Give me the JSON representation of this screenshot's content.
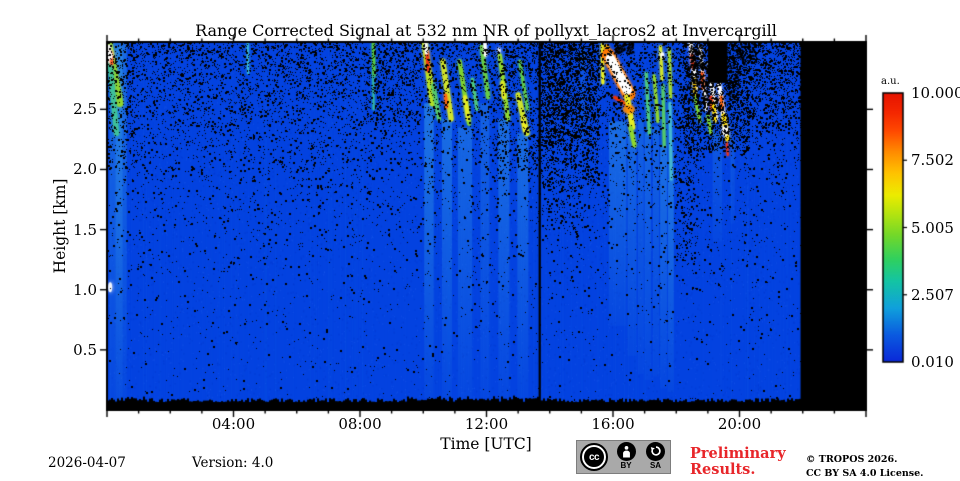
{
  "footer": {
    "date": "2026-04-07",
    "version": "Version: 4.0",
    "preliminary_line1": "Preliminary",
    "preliminary_line2": "Results.",
    "copyright_line1": "© TROPOS 2026.",
    "copyright_line2": "CC BY SA 4.0 License.",
    "badge": {
      "cc": "cc",
      "by": "BY",
      "sa": "SA"
    }
  },
  "chart_data": {
    "type": "heatmap",
    "title": "Range Corrected Signal at 532 nm NR of pollyxt_lacros2 at Invercargill",
    "xlabel": "Time [UTC]",
    "ylabel": "Height [km]",
    "x_range_hours": [
      0,
      24
    ],
    "x_minor_step_hours": 1,
    "x_major_tick_hours": [
      4,
      8,
      12,
      16,
      20
    ],
    "x_tick_labels": [
      "04:00",
      "08:00",
      "12:00",
      "16:00",
      "20:00"
    ],
    "y_range_km": [
      0,
      3.06
    ],
    "y_tick_km": [
      0.5,
      1.0,
      1.5,
      2.0,
      2.5
    ],
    "y_tick_labels": [
      "0.5",
      "1.0",
      "1.5",
      "2.0",
      "2.5"
    ],
    "colorbar": {
      "unit": "a.u.",
      "range": [
        0.01,
        10.0
      ],
      "tick_values": [
        10.0,
        7.502,
        5.005,
        2.507,
        0.01
      ],
      "tick_labels": [
        "10.000",
        "7.502",
        "5.005",
        "2.507",
        "0.010"
      ],
      "gradient_bottom_to_top": [
        [
          0.0,
          "#0a28d8"
        ],
        [
          0.1,
          "#0a5ae0"
        ],
        [
          0.2,
          "#10a0dc"
        ],
        [
          0.3,
          "#14c4a4"
        ],
        [
          0.38,
          "#2fd060"
        ],
        [
          0.47,
          "#72d82a"
        ],
        [
          0.55,
          "#b4e410"
        ],
        [
          0.62,
          "#ecec00"
        ],
        [
          0.7,
          "#ffc400"
        ],
        [
          0.78,
          "#ff8c00"
        ],
        [
          0.86,
          "#ff4800"
        ],
        [
          0.93,
          "#f42600"
        ],
        [
          1.0,
          "#e61400"
        ]
      ]
    },
    "background_color": "#0342e0",
    "no_data_color": "#000000",
    "data_start_hour": 0,
    "data_end_hour": 21.93,
    "gap_hour": 13.68,
    "ground_black_strip_top_km": 0.09,
    "trail_color": "#3aa8e8",
    "trails": [
      [
        0.35,
        0.55,
        3.06,
        0.02,
        0.4
      ],
      [
        0.38,
        0.22,
        3.02,
        0.02,
        0.4
      ],
      [
        10.18,
        0.3,
        2.55,
        0.1,
        0.5
      ],
      [
        10.75,
        0.32,
        2.42,
        0.1,
        0.42
      ],
      [
        11.32,
        0.45,
        2.35,
        0.1,
        0.36
      ],
      [
        11.95,
        0.28,
        2.55,
        0.1,
        0.3
      ],
      [
        12.55,
        0.35,
        2.42,
        0.1,
        0.42
      ],
      [
        13.15,
        0.35,
        2.3,
        0.1,
        0.4
      ],
      [
        15.05,
        0.15,
        3.0,
        2.2,
        0.18
      ],
      [
        16.15,
        0.55,
        2.4,
        0.7,
        0.42
      ],
      [
        16.6,
        0.28,
        2.3,
        0.45,
        0.35
      ],
      [
        16.88,
        0.18,
        2.42,
        0.3,
        0.3
      ],
      [
        17.1,
        0.2,
        2.3,
        0.25,
        0.35
      ],
      [
        17.36,
        0.2,
        2.36,
        0.28,
        0.3
      ],
      [
        17.6,
        0.22,
        2.2,
        0.18,
        0.45
      ],
      [
        17.83,
        0.18,
        1.92,
        0.15,
        0.48
      ],
      [
        19.3,
        0.3,
        2.3,
        1.4,
        0.22
      ],
      [
        19.78,
        0.14,
        2.25,
        1.55,
        0.2
      ]
    ],
    "cores": [
      [
        0.06,
        3.04,
        0.4,
        2.55,
        "#8fd42e",
        7
      ],
      [
        0.1,
        2.88,
        0.3,
        2.3,
        "#3ec09a",
        5
      ],
      [
        0.06,
        3.02,
        0.1,
        2.9,
        "#ffffff",
        4
      ],
      [
        0.13,
        2.97,
        0.15,
        2.88,
        "#ff5522",
        3
      ],
      [
        4.45,
        3.05,
        4.46,
        2.8,
        "#38b8d8",
        2
      ],
      [
        8.42,
        3.05,
        8.44,
        2.78,
        "#55cc44",
        3
      ],
      [
        8.42,
        2.78,
        8.43,
        2.5,
        "#33b8a0",
        2
      ],
      [
        10.05,
        3.04,
        10.3,
        2.55,
        "#b8e022",
        6
      ],
      [
        10.12,
        2.98,
        10.16,
        2.82,
        "#ee3311",
        3
      ],
      [
        10.08,
        3.05,
        10.1,
        2.97,
        "#ffffff",
        3
      ],
      [
        10.32,
        2.7,
        10.5,
        2.42,
        "#55c86a",
        4
      ],
      [
        10.62,
        2.9,
        10.88,
        2.42,
        "#cfe32a",
        5
      ],
      [
        10.7,
        2.62,
        10.74,
        2.52,
        "#ff6611",
        3
      ],
      [
        11.15,
        2.9,
        11.45,
        2.38,
        "#7fd42e",
        4
      ],
      [
        11.32,
        2.6,
        11.42,
        2.42,
        "#e3ea22",
        4
      ],
      [
        11.55,
        2.75,
        11.7,
        2.5,
        "#4ec87e",
        3
      ],
      [
        11.85,
        3.02,
        12.05,
        2.6,
        "#66cc44",
        4
      ],
      [
        11.95,
        3.05,
        11.97,
        2.95,
        "#ffffff",
        3
      ],
      [
        12.42,
        2.95,
        12.68,
        2.42,
        "#8fd82e",
        4
      ],
      [
        12.5,
        2.72,
        12.55,
        2.6,
        "#dfe822",
        4
      ],
      [
        13.0,
        2.62,
        13.28,
        2.3,
        "#cfe32a",
        5
      ],
      [
        13.05,
        2.9,
        13.3,
        2.5,
        "#5fcb4a",
        3
      ],
      [
        13.15,
        2.42,
        13.22,
        2.32,
        "#eeee22",
        4
      ],
      [
        15.66,
        3.04,
        15.68,
        2.72,
        "#e8ee22",
        3
      ],
      [
        15.8,
        3.02,
        15.92,
        2.9,
        "#ffaa00",
        5
      ],
      [
        15.85,
        2.95,
        15.88,
        2.88,
        "#ee3311",
        3
      ],
      [
        15.85,
        2.95,
        16.5,
        2.63,
        "#ff7700",
        13
      ],
      [
        15.92,
        2.92,
        16.45,
        2.66,
        "#ffffff",
        9
      ],
      [
        16.05,
        2.6,
        16.55,
        2.52,
        "#ee3300",
        3
      ],
      [
        16.45,
        2.6,
        16.62,
        2.35,
        "#e8ee22",
        5
      ],
      [
        16.55,
        2.35,
        16.68,
        2.2,
        "#8fd82e",
        4
      ],
      [
        17.05,
        2.8,
        17.15,
        2.3,
        "#4ec87e",
        3
      ],
      [
        17.3,
        2.78,
        17.42,
        2.4,
        "#8fd42e",
        3
      ],
      [
        17.5,
        3.02,
        17.55,
        2.75,
        "#cfe32a",
        3
      ],
      [
        17.58,
        2.7,
        17.62,
        2.2,
        "#55c86a",
        3
      ],
      [
        17.78,
        3.0,
        17.82,
        2.6,
        "#9fd82e",
        3
      ],
      [
        17.8,
        2.55,
        17.84,
        1.92,
        "#44b8d0",
        3
      ],
      [
        18.45,
        3.05,
        18.62,
        2.68,
        "#ffffff",
        4
      ],
      [
        18.5,
        2.95,
        18.53,
        2.85,
        "#ee3311",
        3
      ],
      [
        18.56,
        2.75,
        18.6,
        2.62,
        "#ffcc00",
        3
      ],
      [
        18.6,
        2.6,
        18.75,
        2.4,
        "#7fd42e",
        3
      ],
      [
        18.75,
        3.02,
        18.95,
        2.5,
        "#ffffff",
        3
      ],
      [
        18.82,
        2.8,
        18.85,
        2.68,
        "#ff5511",
        3
      ],
      [
        19.0,
        2.45,
        19.1,
        2.3,
        "#7fd42e",
        3
      ],
      [
        19.05,
        2.88,
        19.25,
        2.42,
        "#ffffff",
        4
      ],
      [
        19.1,
        2.6,
        19.13,
        2.5,
        "#ee3311",
        3
      ],
      [
        19.18,
        2.55,
        19.22,
        2.4,
        "#ffdd00",
        3
      ],
      [
        19.35,
        2.72,
        19.55,
        2.33,
        "#ffffff",
        4
      ],
      [
        19.42,
        2.6,
        19.45,
        2.5,
        "#ff6611",
        3
      ],
      [
        19.5,
        2.45,
        19.62,
        2.25,
        "#ffdd00",
        4
      ],
      [
        19.6,
        2.22,
        19.63,
        2.12,
        "#ee3311",
        2
      ]
    ],
    "blobs": [
      [
        0.08,
        2.95,
        3,
        4,
        "#ffffff",
        0.95
      ],
      [
        0.1,
        1.02,
        2,
        5,
        "#ffffff",
        0.9
      ],
      [
        12.4,
        2.99,
        1.5,
        3,
        "#ffffff",
        0.9
      ],
      [
        16.5,
        2.5,
        6,
        4,
        "#ff8800",
        0.75
      ],
      [
        17.56,
        2.95,
        2,
        3,
        "#ffffff",
        0.9
      ],
      [
        19.55,
        2.32,
        3,
        5,
        "#ffffff",
        1
      ]
    ],
    "speckle_bands": [
      [
        13.72,
        15.55,
        2.2,
        3.06,
        0.25
      ],
      [
        13.72,
        15.55,
        1.85,
        2.2,
        0.1
      ],
      [
        13.72,
        15.3,
        1.5,
        1.85,
        0.05
      ],
      [
        12.2,
        13.68,
        1.9,
        3.06,
        0.06
      ],
      [
        8.1,
        9.95,
        2.4,
        3.06,
        0.04
      ],
      [
        17.9,
        18.7,
        1.2,
        2.5,
        0.06
      ],
      [
        18.2,
        20.3,
        2.15,
        3.06,
        0.2
      ],
      [
        20.3,
        21.93,
        2.35,
        3.06,
        0.09
      ],
      [
        0.0,
        0.9,
        2.0,
        3.06,
        0.05
      ]
    ],
    "black_patches": [
      [
        19.0,
        19.62,
        2.72,
        3.06,
        1
      ],
      [
        16.02,
        16.62,
        2.97,
        3.06,
        0.8
      ],
      [
        18.42,
        18.8,
        2.85,
        3.06,
        0.55
      ],
      [
        20.0,
        20.5,
        2.88,
        3.06,
        0.35
      ],
      [
        18.3,
        19.0,
        2.55,
        2.9,
        0.3
      ],
      [
        19.62,
        19.95,
        2.6,
        3.06,
        0.3
      ]
    ]
  }
}
